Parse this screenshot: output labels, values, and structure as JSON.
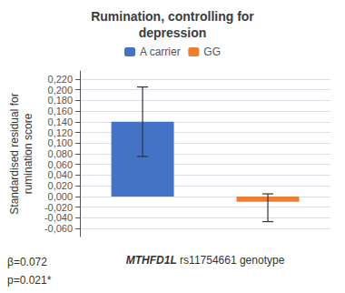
{
  "chart_data": {
    "type": "bar",
    "title": "Rumination, controlling for\ndepression",
    "categories": [
      "A carrier",
      "GG"
    ],
    "values": [
      0.14,
      -0.01
    ],
    "errors_up": [
      0.065,
      0.015
    ],
    "errors_down": [
      0.065,
      0.037
    ],
    "colors": [
      "#4472C4",
      "#ED7D31"
    ],
    "ylabel": "Standardised residual for\nrumination score",
    "xlabel": "MTHFD1L rs11754661 genotype",
    "annotations": [
      "β=0.072",
      "p=0.021*"
    ],
    "ylim": [
      -0.075,
      0.235
    ],
    "yticks": [
      {
        "value": -0.06,
        "label": "-0,060"
      },
      {
        "value": -0.04,
        "label": "-0,040"
      },
      {
        "value": -0.02,
        "label": "-0,020"
      },
      {
        "value": 0.0,
        "label": "0,000"
      },
      {
        "value": 0.02,
        "label": "0,020"
      },
      {
        "value": 0.04,
        "label": "0,040"
      },
      {
        "value": 0.06,
        "label": "0,060"
      },
      {
        "value": 0.08,
        "label": "0,080"
      },
      {
        "value": 0.1,
        "label": "0,100"
      },
      {
        "value": 0.12,
        "label": "0,120"
      },
      {
        "value": 0.14,
        "label": "0,140"
      },
      {
        "value": 0.16,
        "label": "0,160"
      },
      {
        "value": 0.18,
        "label": "0,180"
      },
      {
        "value": 0.2,
        "label": "0,200"
      },
      {
        "value": 0.22,
        "label": "0,220"
      }
    ],
    "grid": true,
    "legend": "top",
    "tick_labels": "y"
  }
}
